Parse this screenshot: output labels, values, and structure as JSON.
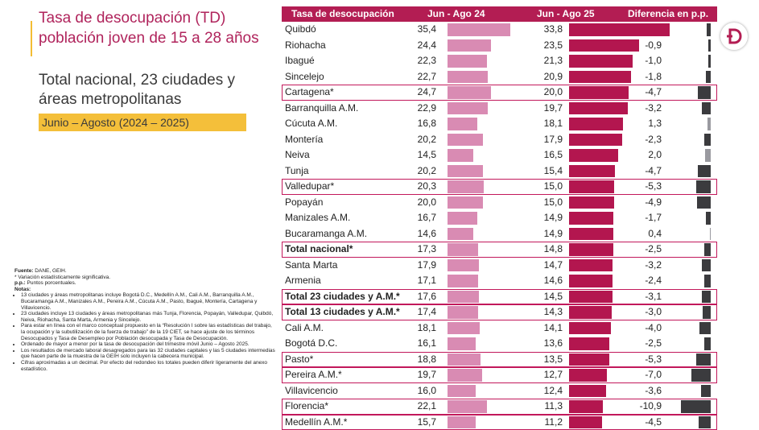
{
  "title": {
    "line1": "Tasa de desocupación (TD) población joven de 15 a 28 años",
    "line2": "Total nacional, 23 ciudades y áreas metropolitanas",
    "period": "Junio – Agosto (2024 – 2025)"
  },
  "notes": {
    "fuente_label": "Fuente:",
    "fuente": " DANE, GEIH.",
    "sig": "* Variación estadísticamente significativa.",
    "pp_label": "p.p.:",
    "pp": " Puntos porcentuales.",
    "notas_label": "Notas:",
    "items": [
      "13 ciudades y áreas metropolitanas incluye Bogotá D.C., Medellín A.M., Cali A.M., Barranquilla A.M., Bucaramanga A.M., Manizales A.M., Pereira A.M., Cúcuta A.M., Pasto, Ibagué, Montería, Cartagena y Villavicencio.",
      "23 ciudades incluye 13 ciudades y áreas metropolitanas más Tunja, Florencia, Popayán, Valledupar, Quibdó, Neiva, Riohacha, Santa Marta, Armenia y Sincelejo.",
      "Para estar en línea con el marco conceptual propuesto en la “Resolución I sobre las estadísticas del trabajo, la ocupación y la subutilización de la fuerza de trabajo” de la 19 CIET, se hace ajuste de los términos Desocupados y Tasa de Desempleo por Población desocupada y Tasa de Desocupación.",
      "Ordenado de mayor a menor por la tasa de desocupación del trimestre móvil Junio – Agosto 2025.",
      "Los resultados de mercado laboral desagregados para las 32 ciudades capitales y las 5 ciudades intermedias que hacen parte de la muestra de la GEIH solo incluyen la cabecera municipal.",
      "Cifras aproximadas a un decimal. Por efecto del redondeo los totales pueden diferir ligeramente del anexo estadístico."
    ]
  },
  "colors": {
    "header": "#b31d53",
    "bar_2024": "#d98bb3",
    "bar_2025": "#b3164f",
    "diff_neg": "#3b3b3e",
    "diff_pos": "#9a9aa0",
    "highlight": "#c2185b",
    "title": "#b0245c",
    "period_bg": "#f4bf3a"
  },
  "chart_data": {
    "type": "table",
    "columns": [
      "Tasa de desocupación",
      "Jun - Ago 24",
      "Jun - Ago 25",
      "Diferencia en p.p."
    ],
    "rows": [
      {
        "name": "Quibdó",
        "y2024": "35,4",
        "y2025": "33,8",
        "diff": "-1,6",
        "v2024": 35.4,
        "v2025": 33.8,
        "d": -1.6,
        "highlight": false,
        "bold": false
      },
      {
        "name": "Riohacha",
        "y2024": "24,4",
        "y2025": "23,5",
        "diff": "-0,9",
        "v2024": 24.4,
        "v2025": 23.5,
        "d": -0.9,
        "highlight": false,
        "bold": false
      },
      {
        "name": "Ibagué",
        "y2024": "22,3",
        "y2025": "21,3",
        "diff": "-1,0",
        "v2024": 22.3,
        "v2025": 21.3,
        "d": -1.0,
        "highlight": false,
        "bold": false
      },
      {
        "name": "Sincelejo",
        "y2024": "22,7",
        "y2025": "20,9",
        "diff": "-1,8",
        "v2024": 22.7,
        "v2025": 20.9,
        "d": -1.8,
        "highlight": false,
        "bold": false
      },
      {
        "name": "Cartagena*",
        "y2024": "24,7",
        "y2025": "20,0",
        "diff": "-4,7",
        "v2024": 24.7,
        "v2025": 20.0,
        "d": -4.7,
        "highlight": true,
        "bold": false
      },
      {
        "name": "Barranquilla A.M.",
        "y2024": "22,9",
        "y2025": "19,7",
        "diff": "-3,2",
        "v2024": 22.9,
        "v2025": 19.7,
        "d": -3.2,
        "highlight": false,
        "bold": false
      },
      {
        "name": "Cúcuta A.M.",
        "y2024": "16,8",
        "y2025": "18,1",
        "diff": "1,3",
        "v2024": 16.8,
        "v2025": 18.1,
        "d": 1.3,
        "highlight": false,
        "bold": false
      },
      {
        "name": "Montería",
        "y2024": "20,2",
        "y2025": "17,9",
        "diff": "-2,3",
        "v2024": 20.2,
        "v2025": 17.9,
        "d": -2.3,
        "highlight": false,
        "bold": false
      },
      {
        "name": "Neiva",
        "y2024": "14,5",
        "y2025": "16,5",
        "diff": "2,0",
        "v2024": 14.5,
        "v2025": 16.5,
        "d": 2.0,
        "highlight": false,
        "bold": false
      },
      {
        "name": "Tunja",
        "y2024": "20,2",
        "y2025": "15,4",
        "diff": "-4,7",
        "v2024": 20.2,
        "v2025": 15.4,
        "d": -4.7,
        "highlight": false,
        "bold": false
      },
      {
        "name": "Valledupar*",
        "y2024": "20,3",
        "y2025": "15,0",
        "diff": "-5,3",
        "v2024": 20.3,
        "v2025": 15.0,
        "d": -5.3,
        "highlight": true,
        "bold": false
      },
      {
        "name": "Popayán",
        "y2024": "20,0",
        "y2025": "15,0",
        "diff": "-4,9",
        "v2024": 20.0,
        "v2025": 15.0,
        "d": -4.9,
        "highlight": false,
        "bold": false
      },
      {
        "name": "Manizales A.M.",
        "y2024": "16,7",
        "y2025": "14,9",
        "diff": "-1,7",
        "v2024": 16.7,
        "v2025": 14.9,
        "d": -1.7,
        "highlight": false,
        "bold": false
      },
      {
        "name": "Bucaramanga A.M.",
        "y2024": "14,6",
        "y2025": "14,9",
        "diff": "0,4",
        "v2024": 14.6,
        "v2025": 14.9,
        "d": 0.4,
        "highlight": false,
        "bold": false
      },
      {
        "name": "Total nacional*",
        "y2024": "17,3",
        "y2025": "14,8",
        "diff": "-2,5",
        "v2024": 17.3,
        "v2025": 14.8,
        "d": -2.5,
        "highlight": true,
        "bold": true
      },
      {
        "name": "Santa Marta",
        "y2024": "17,9",
        "y2025": "14,7",
        "diff": "-3,2",
        "v2024": 17.9,
        "v2025": 14.7,
        "d": -3.2,
        "highlight": false,
        "bold": false
      },
      {
        "name": "Armenia",
        "y2024": "17,1",
        "y2025": "14,6",
        "diff": "-2,4",
        "v2024": 17.1,
        "v2025": 14.6,
        "d": -2.4,
        "highlight": false,
        "bold": false
      },
      {
        "name": "Total 23 ciudades y A.M.*",
        "y2024": "17,6",
        "y2025": "14,5",
        "diff": "-3,1",
        "v2024": 17.6,
        "v2025": 14.5,
        "d": -3.1,
        "highlight": true,
        "bold": true
      },
      {
        "name": "Total 13 ciudades y A.M.*",
        "y2024": "17,4",
        "y2025": "14,3",
        "diff": "-3,0",
        "v2024": 17.4,
        "v2025": 14.3,
        "d": -3.0,
        "highlight": true,
        "bold": true
      },
      {
        "name": "Cali A.M.",
        "y2024": "18,1",
        "y2025": "14,1",
        "diff": "-4,0",
        "v2024": 18.1,
        "v2025": 14.1,
        "d": -4.0,
        "highlight": false,
        "bold": false
      },
      {
        "name": "Bogotá D.C.",
        "y2024": "16,1",
        "y2025": "13,6",
        "diff": "-2,5",
        "v2024": 16.1,
        "v2025": 13.6,
        "d": -2.5,
        "highlight": false,
        "bold": false
      },
      {
        "name": "Pasto*",
        "y2024": "18,8",
        "y2025": "13,5",
        "diff": "-5,3",
        "v2024": 18.8,
        "v2025": 13.5,
        "d": -5.3,
        "highlight": true,
        "bold": false
      },
      {
        "name": "Pereira A.M.*",
        "y2024": "19,7",
        "y2025": "12,7",
        "diff": "-7,0",
        "v2024": 19.7,
        "v2025": 12.7,
        "d": -7.0,
        "highlight": true,
        "bold": false
      },
      {
        "name": "Villavicencio",
        "y2024": "16,0",
        "y2025": "12,4",
        "diff": "-3,6",
        "v2024": 16.0,
        "v2025": 12.4,
        "d": -3.6,
        "highlight": false,
        "bold": false
      },
      {
        "name": "Florencia*",
        "y2024": "22,1",
        "y2025": "11,3",
        "diff": "-10,9",
        "v2024": 22.1,
        "v2025": 11.3,
        "d": -10.9,
        "highlight": true,
        "bold": false
      },
      {
        "name": "Medellín A.M.*",
        "y2024": "15,7",
        "y2025": "11,2",
        "diff": "-4,5",
        "v2024": 15.7,
        "v2025": 11.2,
        "d": -4.5,
        "highlight": true,
        "bold": false
      }
    ]
  }
}
